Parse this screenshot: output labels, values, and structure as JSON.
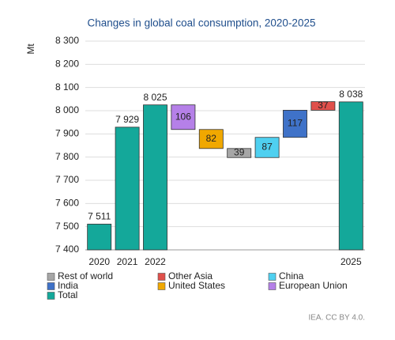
{
  "chart_data": {
    "type": "waterfall",
    "title": "Changes in global coal consumption, 2020-2025",
    "y_label": "Mt",
    "source": "IEA. CC BY 4.0.",
    "categories": [
      "2020",
      "2021",
      "2022",
      null,
      null,
      null,
      null,
      null,
      null,
      "2025"
    ],
    "series": [
      {
        "name": "Rest of world",
        "color": "#a6a6a6",
        "values": [
          null,
          null,
          null,
          null,
          null,
          -39,
          null,
          null,
          null,
          null
        ]
      },
      {
        "name": "Other Asia",
        "color": "#e0504b",
        "values": [
          null,
          null,
          null,
          null,
          null,
          null,
          null,
          null,
          37,
          null
        ]
      },
      {
        "name": "China",
        "color": "#4fd0f0",
        "values": [
          null,
          null,
          null,
          null,
          null,
          null,
          87,
          null,
          null,
          null
        ]
      },
      {
        "name": "India",
        "color": "#3f72c8",
        "values": [
          null,
          null,
          null,
          null,
          null,
          null,
          null,
          117,
          null,
          null
        ]
      },
      {
        "name": "United States",
        "color": "#f0a800",
        "values": [
          null,
          null,
          null,
          null,
          -82,
          null,
          null,
          null,
          null,
          null
        ]
      },
      {
        "name": "European Union",
        "color": "#b580e8",
        "values": [
          null,
          null,
          null,
          -106,
          null,
          null,
          null,
          null,
          null,
          null
        ]
      },
      {
        "name": "Total",
        "color": "#14a89a",
        "total": true,
        "values": [
          7511,
          7929,
          8025,
          null,
          null,
          null,
          null,
          null,
          null,
          8038
        ]
      }
    ],
    "value_labels": [
      "7 511",
      "7 929",
      "8 025",
      "106",
      "82",
      "39",
      "87",
      "117",
      "37",
      "8 038"
    ],
    "ylim": [
      7400,
      8300
    ],
    "yticks": [
      {
        "value": 7400,
        "label": "7 400"
      },
      {
        "value": 7500,
        "label": "7 500"
      },
      {
        "value": 7600,
        "label": "7 600"
      },
      {
        "value": 7700,
        "label": "7 700"
      },
      {
        "value": 7800,
        "label": "7 800"
      },
      {
        "value": 7900,
        "label": "7 900"
      },
      {
        "value": 8000,
        "label": "8 000"
      },
      {
        "value": 8100,
        "label": "8 100"
      },
      {
        "value": 8200,
        "label": "8 200"
      },
      {
        "value": 8300,
        "label": "8 300"
      }
    ],
    "grid": true
  }
}
